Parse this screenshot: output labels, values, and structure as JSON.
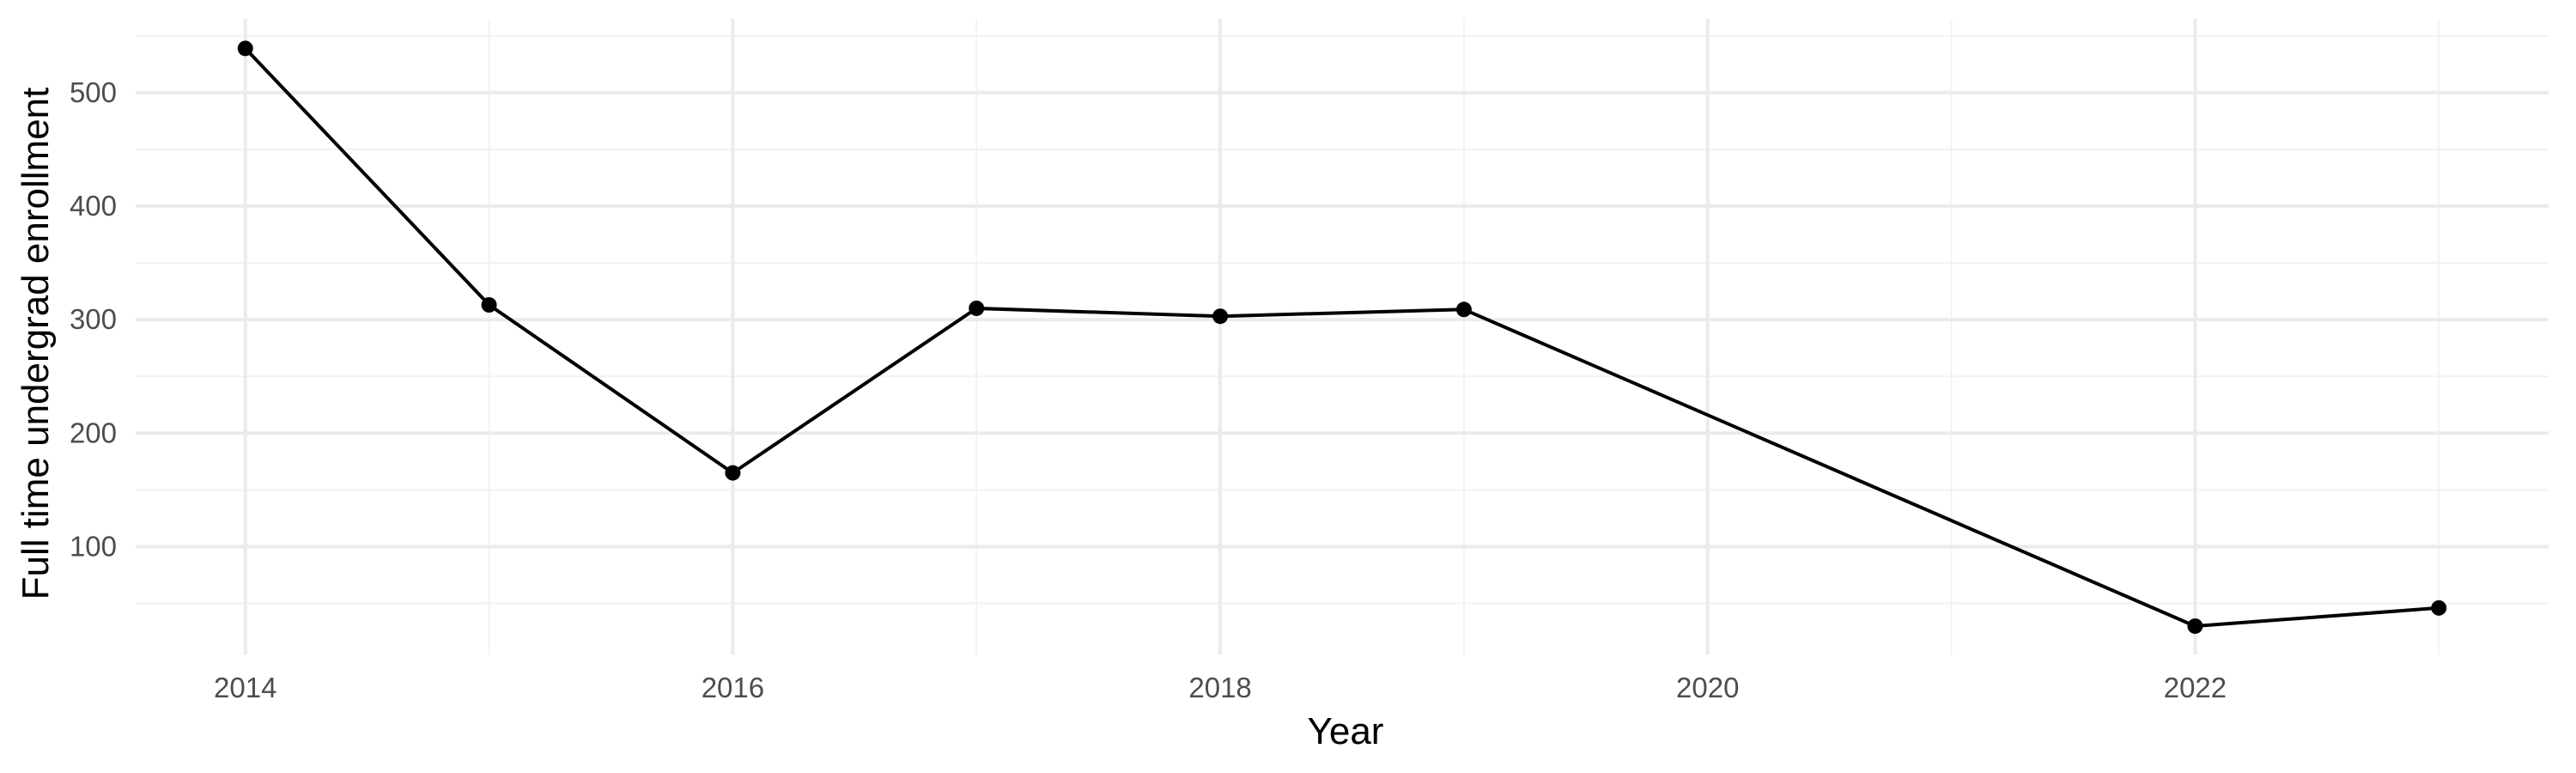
{
  "chart_data": {
    "type": "line",
    "title": "",
    "xlabel": "Year",
    "ylabel": "Full time undergrad enrollment",
    "x": [
      2014,
      2015,
      2016,
      2017,
      2018,
      2019,
      2022,
      2023
    ],
    "series": [
      {
        "values": [
          539,
          313,
          165,
          310,
          303,
          309,
          30,
          46
        ]
      }
    ],
    "xlim": [
      2013.55,
      2023.45
    ],
    "ylim": [
      5,
      565
    ],
    "x_ticks": [
      2014,
      2016,
      2018,
      2020,
      2022
    ],
    "x_tick_labels": [
      "2014",
      "2016",
      "2018",
      "2020",
      "2022"
    ],
    "y_ticks": [
      100,
      200,
      300,
      400,
      500
    ],
    "y_tick_labels": [
      "100",
      "200",
      "300",
      "400",
      "500"
    ],
    "grid": true,
    "legend": "none",
    "colors": {
      "line": "#000000",
      "point": "#000000",
      "grid_major": "#ebebeb",
      "grid_minor": "#f2f2f2"
    }
  }
}
